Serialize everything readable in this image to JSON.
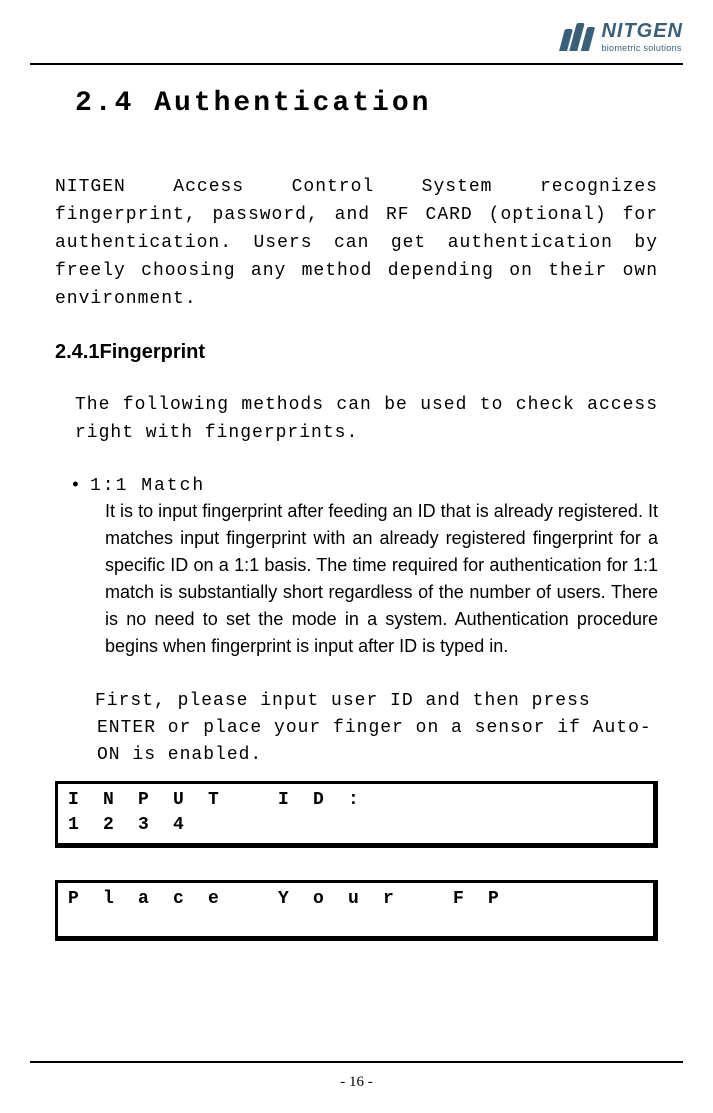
{
  "logo": {
    "main": "NITGEN",
    "sub": "biometric solutions",
    "color": "#3a5f7a"
  },
  "section": {
    "title": "2.4 Authentication",
    "intro": "NITGEN Access Control System recognizes fingerprint, password, and RF CARD (optional) for authentication. Users can get authentication by freely choosing any method depending on their own environment."
  },
  "subsection": {
    "title": "2.4.1Fingerprint",
    "para": "The following methods can be used to check access right with fingerprints."
  },
  "bullet": {
    "marker": "•",
    "title": "1:1 Match",
    "body": "It is to input fingerprint after feeding an ID that is already registered. It matches input fingerprint with an already registered fingerprint for a specific ID on a 1:1 basis. The time required for authentication for 1:1 match is substantially short regardless of the number of users. There is no need to set the mode in a system. Authentication procedure begins when fingerprint is input after ID is typed in."
  },
  "instruction": "First, please input user ID and then press ENTER or place your finger on a sensor if Auto-ON is enabled.",
  "lcd1": {
    "row1": [
      "I",
      "N",
      "P",
      "U",
      "T",
      "",
      "I",
      "D",
      ":",
      "",
      "",
      "",
      "",
      "",
      "",
      ""
    ],
    "row2": [
      "1",
      "2",
      "3",
      "4",
      "",
      "",
      "",
      "",
      "",
      "",
      "",
      "",
      "",
      "",
      "",
      ""
    ]
  },
  "lcd2": {
    "row1": [
      "P",
      "l",
      "a",
      "c",
      "e",
      "",
      "Y",
      "o",
      "u",
      "r",
      "",
      "F",
      "P",
      "",
      "",
      ""
    ]
  },
  "page_number": "- 16 -"
}
